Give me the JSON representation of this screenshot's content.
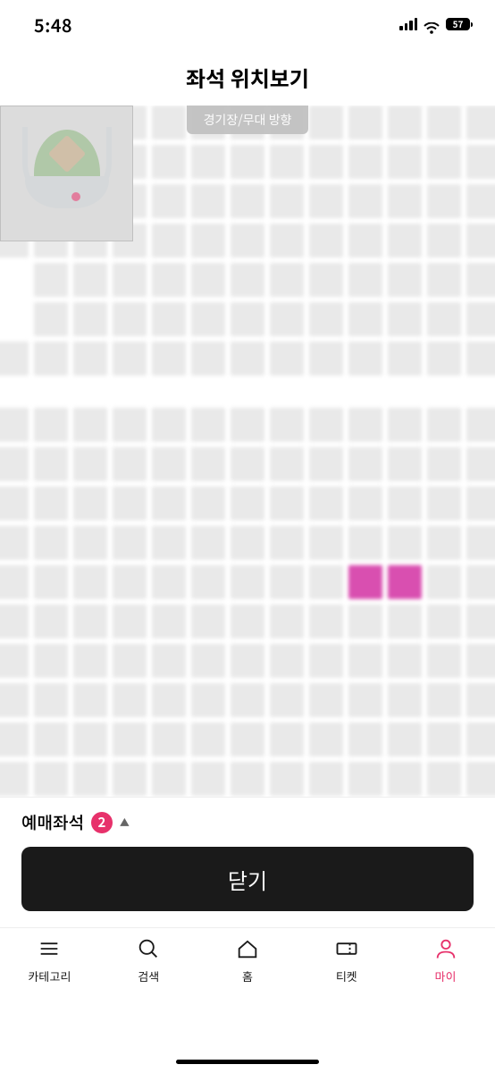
{
  "status": {
    "time": "5:48",
    "battery_pct": "57"
  },
  "header": {
    "title": "좌석 위치보기"
  },
  "direction_banner": "경기장/무대 방향",
  "seat_grid": {
    "cols": 13,
    "block1_rows": 7,
    "gap_after_block1": true,
    "block2_rows": 10,
    "seat_color": "#e9e9e9",
    "selected_color": "#d94fb0",
    "empty_cells": [
      "4,0",
      "5,0"
    ],
    "selected_cells": [
      "11,9",
      "11,10"
    ]
  },
  "reserved": {
    "label": "예매좌석",
    "count": "2"
  },
  "buttons": {
    "close": "닫기"
  },
  "tabs": [
    {
      "key": "category",
      "label": "카테고리"
    },
    {
      "key": "search",
      "label": "검색"
    },
    {
      "key": "home",
      "label": "홈"
    },
    {
      "key": "ticket",
      "label": "티켓"
    },
    {
      "key": "my",
      "label": "마이",
      "active": true
    }
  ]
}
